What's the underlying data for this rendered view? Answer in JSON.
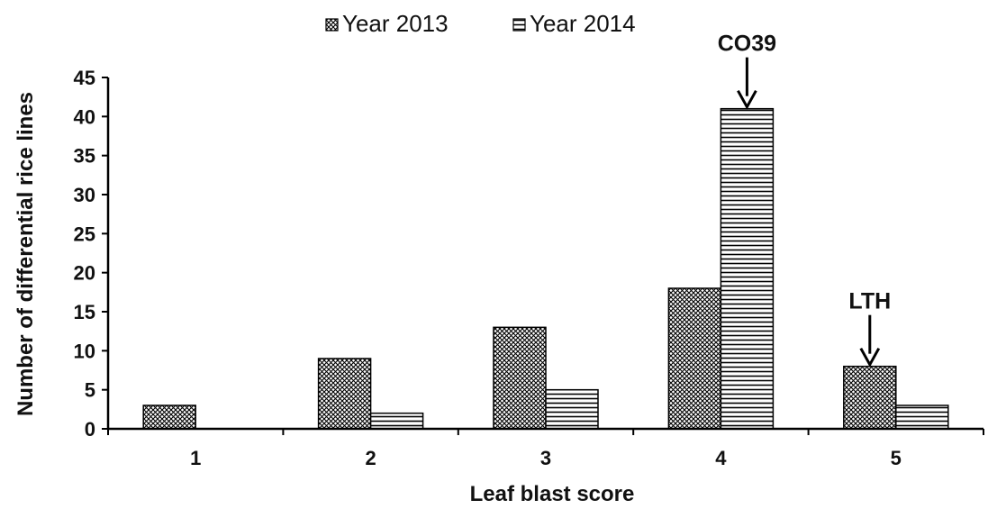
{
  "chart_data": {
    "type": "bar",
    "title": "",
    "xlabel": "Leaf blast score",
    "ylabel": "Number of differential rice lines",
    "categories": [
      "1",
      "2",
      "3",
      "4",
      "5"
    ],
    "series": [
      {
        "name": "Year 2013",
        "values": [
          3,
          9,
          13,
          18,
          8
        ],
        "pattern": "crosshatch"
      },
      {
        "name": "Year 2014",
        "values": [
          0,
          2,
          5,
          41,
          3
        ],
        "pattern": "horizontal-stripes"
      }
    ],
    "ylim": [
      0,
      45
    ],
    "yticks": [
      0,
      5,
      10,
      15,
      20,
      25,
      30,
      35,
      40,
      45
    ],
    "grid": false,
    "legend_position": "top-center",
    "annotations": [
      {
        "text": "CO39",
        "category": "4",
        "series": "Year 2014",
        "arrow": "down"
      },
      {
        "text": "LTH",
        "category": "5",
        "series": "Year 2013",
        "arrow": "down"
      }
    ],
    "colors": {
      "bar_edge": "#000000",
      "pattern_ink": "#000000",
      "background": "#ffffff"
    }
  }
}
